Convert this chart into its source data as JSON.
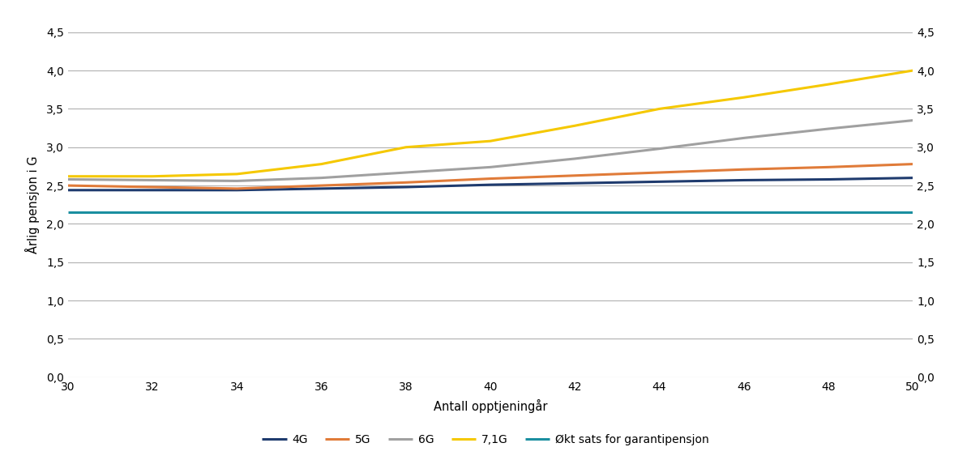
{
  "x": [
    30,
    32,
    34,
    36,
    38,
    40,
    42,
    44,
    46,
    48,
    50
  ],
  "series": {
    "4G": {
      "color": "#1f3b6e",
      "values": [
        2.44,
        2.44,
        2.44,
        2.46,
        2.48,
        2.51,
        2.53,
        2.55,
        2.57,
        2.58,
        2.6
      ]
    },
    "5G": {
      "color": "#e07b39",
      "values": [
        2.5,
        2.48,
        2.46,
        2.5,
        2.54,
        2.59,
        2.63,
        2.67,
        2.71,
        2.74,
        2.78
      ]
    },
    "6G": {
      "color": "#a0a0a0",
      "values": [
        2.58,
        2.57,
        2.56,
        2.6,
        2.67,
        2.74,
        2.85,
        2.98,
        3.12,
        3.24,
        3.35
      ]
    },
    "7,1G": {
      "color": "#f5c800",
      "values": [
        2.62,
        2.62,
        2.65,
        2.78,
        3.0,
        3.08,
        3.28,
        3.5,
        3.65,
        3.82,
        4.0
      ]
    },
    "Økt sats for garantipensjon": {
      "color": "#1b8fa0",
      "values": [
        2.15,
        2.15,
        2.15,
        2.15,
        2.15,
        2.15,
        2.15,
        2.15,
        2.15,
        2.15,
        2.15
      ]
    }
  },
  "xlabel": "Antall opptjeningår",
  "ylabel": "Årlig pensjon i G",
  "ylim": [
    0.0,
    4.5
  ],
  "yticks": [
    0.0,
    0.5,
    1.0,
    1.5,
    2.0,
    2.5,
    3.0,
    3.5,
    4.0,
    4.5
  ],
  "ytick_labels": [
    "0,0",
    "0,5",
    "1,0",
    "1,5",
    "2,0",
    "2,5",
    "3,0",
    "3,5",
    "4,0",
    "4,5"
  ],
  "xlim": [
    30,
    50
  ],
  "xticks": [
    30,
    32,
    34,
    36,
    38,
    40,
    42,
    44,
    46,
    48,
    50
  ],
  "line_width": 2.2,
  "background_color": "#ffffff",
  "grid_color": "#b0b0b0",
  "legend_order": [
    "4G",
    "5G",
    "6G",
    "7,1G",
    "Økt sats for garantipensjon"
  ]
}
